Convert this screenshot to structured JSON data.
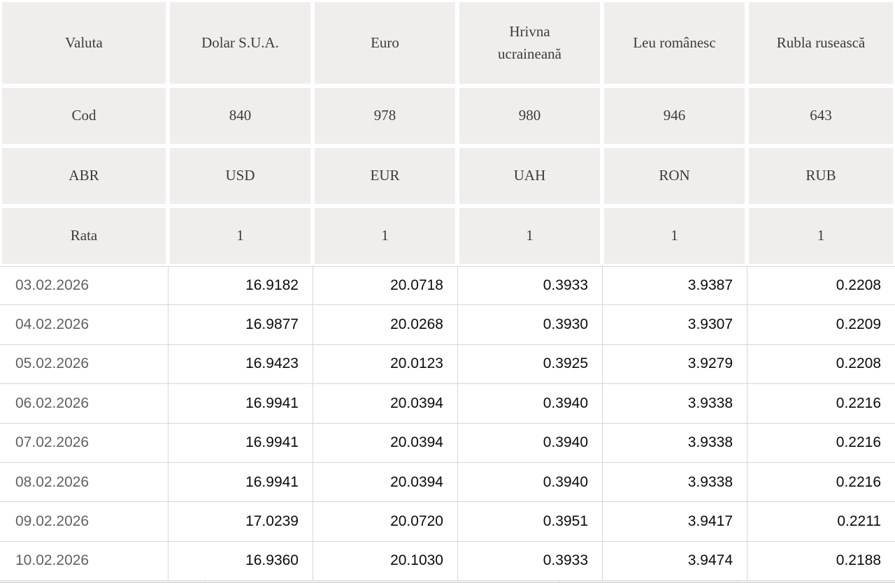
{
  "colors": {
    "header-bg": "#f0eeec",
    "header-text": "#3c3c3c",
    "border": "#d8d6d4",
    "date-text": "#616161",
    "value-text": "#0b0b0b",
    "sliver-bar": "#dedcda"
  },
  "table": {
    "meta_rows": [
      {
        "label": "Valuta",
        "values": [
          "Dolar S.U.A.",
          "Euro",
          "Hrivna ucraineană",
          "Leu românesc",
          "Rubla rusească"
        ]
      },
      {
        "label": "Cod",
        "values": [
          "840",
          "978",
          "980",
          "946",
          "643"
        ]
      },
      {
        "label": "ABR",
        "values": [
          "USD",
          "EUR",
          "UAH",
          "RON",
          "RUB"
        ]
      },
      {
        "label": "Rata",
        "values": [
          "1",
          "1",
          "1",
          "1",
          "1"
        ]
      }
    ],
    "rate_rows": [
      {
        "date": "03.02.2026",
        "values": [
          "16.9182",
          "20.0718",
          "0.3933",
          "3.9387",
          "0.2208"
        ]
      },
      {
        "date": "04.02.2026",
        "values": [
          "16.9877",
          "20.0268",
          "0.3930",
          "3.9307",
          "0.2209"
        ]
      },
      {
        "date": "05.02.2026",
        "values": [
          "16.9423",
          "20.0123",
          "0.3925",
          "3.9279",
          "0.2208"
        ]
      },
      {
        "date": "06.02.2026",
        "values": [
          "16.9941",
          "20.0394",
          "0.3940",
          "3.9338",
          "0.2216"
        ]
      },
      {
        "date": "07.02.2026",
        "values": [
          "16.9941",
          "20.0394",
          "0.3940",
          "3.9338",
          "0.2216"
        ]
      },
      {
        "date": "08.02.2026",
        "values": [
          "16.9941",
          "20.0394",
          "0.3940",
          "3.9338",
          "0.2216"
        ]
      },
      {
        "date": "09.02.2026",
        "values": [
          "17.0239",
          "20.0720",
          "0.3951",
          "3.9417",
          "0.2211"
        ]
      },
      {
        "date": "10.02.2026",
        "values": [
          "16.9360",
          "20.1030",
          "0.3933",
          "3.9474",
          "0.2188"
        ]
      }
    ]
  }
}
